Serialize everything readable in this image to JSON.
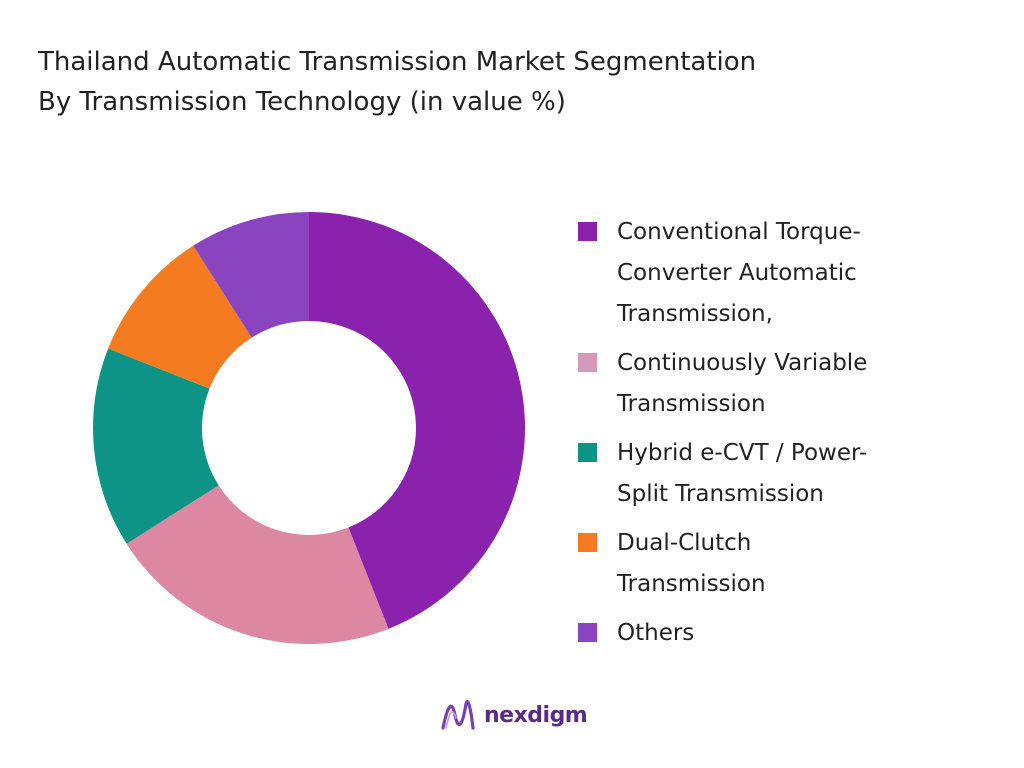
{
  "title_line1": "Thailand Automatic Transmission Market Segmentation",
  "title_line2": "By Transmission Technology (in value %)",
  "chart_data": {
    "type": "pie",
    "variant": "donut",
    "title": "Thailand Automatic Transmission Market Segmentation By Transmission Technology (in value %)",
    "categories": [
      "Conventional Torque-Converter Automatic Transmission,",
      "Continuously Variable Transmission",
      "Hybrid e-CVT / Power-Split Transmission",
      "Dual-Clutch Transmission",
      "Others"
    ],
    "values": [
      44,
      22,
      15,
      10,
      9
    ],
    "colors": [
      "#8b22ad",
      "#dd88a2",
      "#0e9486",
      "#f47b1f",
      "#8a44c0"
    ],
    "legend_position": "right"
  },
  "legend": [
    {
      "label": "Conventional Torque-\nConverter Automatic\nTransmission,",
      "color": "#8b22ad"
    },
    {
      "label": "Continuously Variable\nTransmission",
      "color": "#d49aba"
    },
    {
      "label": "Hybrid e-CVT / Power-\nSplit Transmission",
      "color": "#0e9486"
    },
    {
      "label": "Dual-Clutch\nTransmission",
      "color": "#f47b1f"
    },
    {
      "label": "Others",
      "color": "#8a44c0"
    }
  ],
  "logo": {
    "text": "nexdigm",
    "color": "#5b2a86"
  }
}
